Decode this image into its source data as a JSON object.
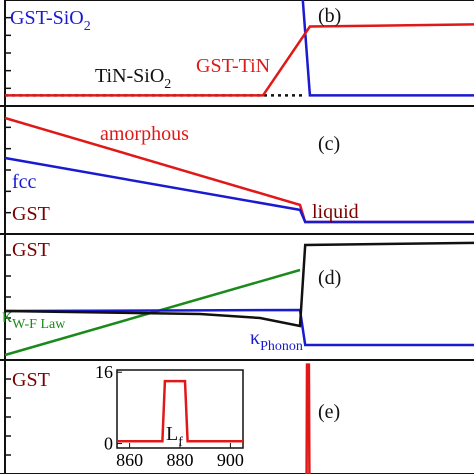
{
  "chart_data": [
    {
      "type": "line",
      "xlim": [
        0,
        100
      ],
      "ylim": [
        0,
        1
      ],
      "series": [
        {
          "color": "#111111",
          "dash": true,
          "x": [
            0,
            64
          ],
          "values": [
            0.1,
            0.1
          ]
        },
        {
          "color": "#1a1ad0",
          "x": [
            63.5,
            65,
            100
          ],
          "values": [
            1.0,
            0.1,
            0.1
          ]
        },
        {
          "color": "#e01818",
          "x": [
            0,
            55,
            65,
            100
          ],
          "values": [
            0.1,
            0.1,
            0.75,
            0.77
          ]
        }
      ],
      "annotations": [
        {
          "text": "GST-SiO",
          "sub": "2",
          "color": "#1a1ad0"
        },
        {
          "text": "(b)",
          "color": "#111111"
        },
        {
          "text": "GST-TiN",
          "color": "#e01818"
        },
        {
          "text": "TiN-SiO",
          "sub": "2",
          "color": "#111111"
        }
      ]
    },
    {
      "type": "line",
      "xlim": [
        0,
        100
      ],
      "ylim": [
        0,
        1
      ],
      "series": [
        {
          "color": "#e01818",
          "x": [
            0,
            62.9,
            64,
            100
          ],
          "values": [
            0.906,
            0.227,
            0.094,
            0.094
          ]
        },
        {
          "color": "#1a1ad0",
          "x": [
            0,
            62.9,
            64,
            100
          ],
          "values": [
            0.594,
            0.188,
            0.094,
            0.094
          ]
        }
      ],
      "annotations": [
        {
          "text": "amorphous",
          "color": "#e01818"
        },
        {
          "text": "(c)",
          "color": "#111111"
        },
        {
          "text": "fcc",
          "color": "#1a1ad0"
        },
        {
          "text": "GST",
          "color": "#7a0000"
        },
        {
          "text": "liquid",
          "color": "#7a0000"
        }
      ]
    },
    {
      "type": "line",
      "xlim": [
        0,
        100
      ],
      "ylim": [
        0,
        1
      ],
      "series": [
        {
          "color": "#1a8a1a",
          "x": [
            0,
            62.9
          ],
          "values": [
            0.04,
            0.714
          ]
        },
        {
          "color": "#1a1ad0",
          "x": [
            0,
            62.9,
            64,
            100
          ],
          "values": [
            0.389,
            0.397,
            0.119,
            0.119
          ]
        },
        {
          "color": "#111111",
          "x": [
            0,
            41.6,
            54.4,
            62.9,
            64,
            100
          ],
          "values": [
            0.389,
            0.365,
            0.333,
            0.27,
            0.913,
            0.929
          ]
        }
      ],
      "annotations": [
        {
          "text": "GST",
          "color": "#7a0000"
        },
        {
          "text": "(d)",
          "color": "#111111"
        },
        {
          "text": "κ",
          "sub": "W-F Law",
          "color": "#1a8a1a"
        },
        {
          "text": "κ",
          "sub": "Phonon",
          "color": "#1a1ad0"
        }
      ]
    },
    {
      "type": "line",
      "xlim": [
        0,
        100
      ],
      "ylim": [
        0,
        1
      ],
      "series": [
        {
          "color": "#e01818",
          "x": [
            64.3,
            64.4,
            64.8,
            64.9
          ],
          "values": [
            0,
            0.96,
            0.96,
            0
          ]
        }
      ],
      "annotations": [
        {
          "text": "GST",
          "color": "#7a0000"
        },
        {
          "text": "(e)",
          "color": "#111111"
        }
      ]
    },
    {
      "type": "inset",
      "xlim": [
        855,
        905
      ],
      "ylim": [
        -1,
        16.5
      ],
      "xticks": [
        860,
        880,
        900
      ],
      "yticks": [
        0,
        16
      ],
      "series": [
        {
          "color": "#e01818",
          "x": [
            855,
            873,
            874,
            882,
            883,
            905
          ],
          "values": [
            0.5,
            0.5,
            14,
            14,
            0.5,
            0.5
          ]
        }
      ],
      "annotations": [
        {
          "text": "L",
          "sub": "f",
          "color": "#111111"
        }
      ]
    }
  ]
}
